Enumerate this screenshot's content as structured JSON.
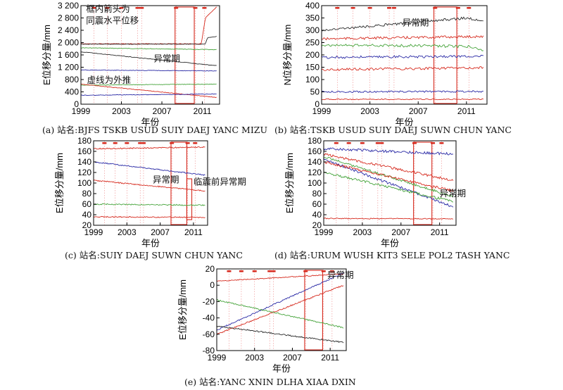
{
  "chart_data": [
    {
      "id": "a",
      "type": "line",
      "caption": "(a) 站名:BJFS TSKB USUD SUIY DAEJ YANC MIZU",
      "ylabel": "E位移分量/mm",
      "xlabel": "年份",
      "xlim": [
        1999,
        2012.7
      ],
      "ylim": [
        0,
        3200
      ],
      "xticks": [
        1999,
        2003,
        2007,
        2011
      ],
      "xtick_labels": [
        "1999",
        "2003",
        "2007",
        "2011"
      ],
      "yticks": [
        0,
        400,
        800,
        1200,
        1600,
        2000,
        2400,
        2800,
        3200
      ],
      "ytick_labels": [
        "0",
        "400",
        "800",
        "1 200",
        "1 600",
        "2 000",
        "2 400",
        "2 800",
        "3 200"
      ],
      "anomaly_window": [
        2008.3,
        2010.2
      ],
      "pre_anomaly_window": null,
      "event_markers": [
        2000.3,
        2001.6,
        2003.0,
        2004.6,
        2005.0,
        2008.4,
        2010.3,
        2011.2
      ],
      "annotations": [
        {
          "text": "框内箭头为",
          "x": 1999.5,
          "y": 3000
        },
        {
          "text": "同震水平位移",
          "x": 1999.5,
          "y": 2620
        },
        {
          "text": "异常期",
          "x": 2006.2,
          "y": 1380
        },
        {
          "text": "虚线为外推",
          "x": 1999.6,
          "y": 690
        }
      ],
      "series": [
        {
          "color": "#d62b1f",
          "noise": 0.25,
          "x": [
            1999,
            2010.9,
            2011.3,
            2012.4
          ],
          "y": [
            1960,
            1960,
            2800,
            3150
          ]
        },
        {
          "color": "#2a2a2a",
          "noise": 0.25,
          "x": [
            1999,
            2011.3,
            2011.5,
            2012.4
          ],
          "y": [
            1950,
            1950,
            2150,
            2200
          ]
        },
        {
          "color": "#45a33a",
          "noise": 0.25,
          "x": [
            1999,
            2012.4
          ],
          "y": [
            1830,
            1770
          ]
        },
        {
          "color": "#2a2a2a",
          "noise": 0.25,
          "x": [
            1999,
            2012.4
          ],
          "y": [
            1700,
            1250
          ]
        },
        {
          "color": "#2b2ba6",
          "noise": 0.25,
          "x": [
            1999,
            2012.4
          ],
          "y": [
            1110,
            1080
          ]
        },
        {
          "color": "#45a33a",
          "noise": 0.25,
          "x": [
            1999,
            2012.4
          ],
          "y": [
            620,
            650
          ]
        },
        {
          "color": "#d62b1f",
          "noise": 0.25,
          "x": [
            1999,
            2012.4
          ],
          "y": [
            650,
            220
          ]
        },
        {
          "color": "#2b2ba6",
          "noise": 0.25,
          "x": [
            1999,
            2012.4
          ],
          "y": [
            290,
            330
          ]
        }
      ]
    },
    {
      "id": "b",
      "type": "line",
      "caption": "(b) 站名:TSKB USUD SUIY DAEJ SUWN CHUN YANC",
      "ylabel": "N位移分量/mm",
      "xlabel": "年份",
      "xlim": [
        1999,
        2012.7
      ],
      "ylim": [
        0,
        400
      ],
      "xticks": [
        1999,
        2003,
        2007,
        2011
      ],
      "xtick_labels": [
        "1999",
        "2003",
        "2007",
        "2011"
      ],
      "yticks": [
        0,
        50,
        100,
        150,
        200,
        250,
        300,
        350,
        400
      ],
      "ytick_labels": [
        "0",
        "50",
        "100",
        "150",
        "200",
        "250",
        "300",
        "350",
        "400"
      ],
      "anomaly_window": [
        2008.3,
        2010.2
      ],
      "pre_anomaly_window": null,
      "event_markers": [
        2000.3,
        2001.6,
        2003.0,
        2004.6,
        2005.0,
        2008.4,
        2010.3,
        2011.2
      ],
      "annotations": [
        {
          "text": "异常期",
          "x": 2005.7,
          "y": 318
        }
      ],
      "series": [
        {
          "color": "#2a2a2a",
          "noise": 3.5,
          "x": [
            1999,
            2011,
            2012.4
          ],
          "y": [
            300,
            350,
            335
          ]
        },
        {
          "color": "#d62b1f",
          "noise": 3.5,
          "x": [
            1999,
            2012.4
          ],
          "y": [
            265,
            275
          ]
        },
        {
          "color": "#45a33a",
          "noise": 4,
          "x": [
            1999,
            2011.3,
            2012.4
          ],
          "y": [
            240,
            235,
            215
          ]
        },
        {
          "color": "#2b2ba6",
          "noise": 3.5,
          "x": [
            1999,
            2012.4
          ],
          "y": [
            190,
            195
          ]
        },
        {
          "color": "#d62b1f",
          "noise": 3.5,
          "x": [
            1999,
            2012.4
          ],
          "y": [
            140,
            148
          ]
        },
        {
          "color": "#2b2ba6",
          "noise": 2.5,
          "x": [
            1999,
            2012.4
          ],
          "y": [
            50,
            52
          ]
        },
        {
          "color": "#d62b1f",
          "noise": 1.5,
          "x": [
            1999,
            2012.4
          ],
          "y": [
            20,
            20
          ]
        }
      ]
    },
    {
      "id": "c",
      "type": "line",
      "caption": "(c) 站名:SUIY DAEJ SUWN CHUN YANC",
      "ylabel": "E位移分量/mm",
      "xlabel": "年份",
      "xlim": [
        1999,
        2012.7
      ],
      "ylim": [
        20,
        180
      ],
      "xticks": [
        1999,
        2003,
        2007,
        2011
      ],
      "xtick_labels": [
        "1999",
        "2003",
        "2007",
        "2011"
      ],
      "yticks": [
        20,
        40,
        60,
        80,
        100,
        120,
        140,
        160,
        180
      ],
      "ytick_labels": [
        "20",
        "40",
        "60",
        "80",
        "100",
        "120",
        "140",
        "160",
        "180"
      ],
      "anomaly_window": [
        2008.3,
        2010.2
      ],
      "pre_anomaly_window": [
        2010.2,
        2010.8
      ],
      "event_markers": [
        2000.3,
        2001.6,
        2003.0,
        2004.6,
        2005.0,
        2008.4,
        2010.3,
        2011.2
      ],
      "annotations": [
        {
          "text": "异常期",
          "x": 2006.1,
          "y": 101
        },
        {
          "text": "临震前异常期",
          "x": 2011.0,
          "y": 97
        }
      ],
      "series": [
        {
          "color": "#d62b1f",
          "noise": 1.6,
          "x": [
            1999,
            2012.4
          ],
          "y": [
            165,
            168
          ]
        },
        {
          "color": "#2b2ba6",
          "noise": 1.6,
          "x": [
            1999,
            2012.4
          ],
          "y": [
            140,
            115
          ]
        },
        {
          "color": "#d62b1f",
          "noise": 1.6,
          "x": [
            1999,
            2012.4
          ],
          "y": [
            105,
            85
          ]
        },
        {
          "color": "#45a33a",
          "noise": 1.6,
          "x": [
            1999,
            2012.4
          ],
          "y": [
            60,
            58
          ]
        },
        {
          "color": "#d62b1f",
          "noise": 1.4,
          "x": [
            1999,
            2012.4
          ],
          "y": [
            36,
            35
          ]
        }
      ]
    },
    {
      "id": "d",
      "type": "line",
      "caption": "(d) 站名:URUM WUSH KIT3 SELE POL2 TASH YANC",
      "ylabel": "E位移分量/mm",
      "xlabel": "年份",
      "xlim": [
        1999,
        2012.7
      ],
      "ylim": [
        20,
        180
      ],
      "xticks": [
        1999,
        2003,
        2007,
        2011
      ],
      "xtick_labels": [
        "1999",
        "2003",
        "2007",
        "2011"
      ],
      "yticks": [
        20,
        40,
        60,
        80,
        100,
        120,
        140,
        160,
        180
      ],
      "ytick_labels": [
        "20",
        "40",
        "60",
        "80",
        "100",
        "120",
        "140",
        "160",
        "180"
      ],
      "anomaly_window": [
        2008.3,
        2010.2
      ],
      "pre_anomaly_window": null,
      "event_markers": [
        2000.3,
        2001.6,
        2003.0,
        2004.6,
        2005.0,
        2008.4,
        2010.3,
        2011.2
      ],
      "annotations": [
        {
          "text": "异常期",
          "x": 2011.0,
          "y": 75
        }
      ],
      "series": [
        {
          "color": "#2b2ba6",
          "noise": 3.5,
          "x": [
            1999,
            2012.4
          ],
          "y": [
            165,
            155
          ]
        },
        {
          "color": "#d62b1f",
          "noise": 3.5,
          "x": [
            1999,
            2012.4
          ],
          "y": [
            155,
            105
          ]
        },
        {
          "color": "#45a33a",
          "noise": 3.5,
          "x": [
            1999,
            2012.4
          ],
          "y": [
            150,
            75
          ]
        },
        {
          "color": "#2b2ba6",
          "noise": 3.5,
          "x": [
            1999,
            2012.4
          ],
          "y": [
            145,
            55
          ]
        },
        {
          "color": "#d62b1f",
          "noise": 3.5,
          "x": [
            1999,
            2012.4
          ],
          "y": [
            140,
            85
          ]
        },
        {
          "color": "#45a33a",
          "noise": 3.5,
          "x": [
            1999,
            2012.4
          ],
          "y": [
            120,
            65
          ]
        },
        {
          "color": "#d62b1f",
          "noise": 1.4,
          "x": [
            1999,
            2012.4
          ],
          "y": [
            33,
            32
          ]
        }
      ]
    },
    {
      "id": "e",
      "type": "line",
      "caption": "(e) 站名:YANC XNIN DLHA XIAA DXIN",
      "ylabel": "E位移分量/mm",
      "xlabel": "年份",
      "xlim": [
        1999,
        2012.7
      ],
      "ylim": [
        -80,
        20
      ],
      "xticks": [
        1999,
        2003,
        2007,
        2011
      ],
      "xtick_labels": [
        "1999",
        "2003",
        "2007",
        "2011"
      ],
      "yticks": [
        -80,
        -60,
        -40,
        -20,
        0,
        20
      ],
      "ytick_labels": [
        "-80",
        "-60",
        "-40",
        "-20",
        "0",
        "20"
      ],
      "anomaly_window": [
        2008.3,
        2010.2
      ],
      "pre_anomaly_window": null,
      "event_markers": [
        2000.3,
        2001.6,
        2003.0,
        2004.6,
        2005.0,
        2008.4,
        2010.3,
        2011.2
      ],
      "annotations": [
        {
          "text": "异常期",
          "x": 2010.7,
          "y": 9
        }
      ],
      "series": [
        {
          "color": "#d62b1f",
          "noise": 1.3,
          "x": [
            1999,
            2012.4
          ],
          "y": [
            5,
            14
          ]
        },
        {
          "color": "#2b2ba6",
          "noise": 1.8,
          "x": [
            1999,
            2012.4
          ],
          "y": [
            -55,
            15
          ]
        },
        {
          "color": "#d62b1f",
          "noise": 1.8,
          "x": [
            1999,
            2012.4
          ],
          "y": [
            -60,
            0
          ]
        },
        {
          "color": "#45a33a",
          "noise": 1.8,
          "x": [
            1999,
            2012.4
          ],
          "y": [
            -18,
            -52
          ]
        },
        {
          "color": "#2a2a2a",
          "noise": 1.8,
          "x": [
            1999,
            2012.4
          ],
          "y": [
            -50,
            -70
          ]
        }
      ]
    }
  ]
}
